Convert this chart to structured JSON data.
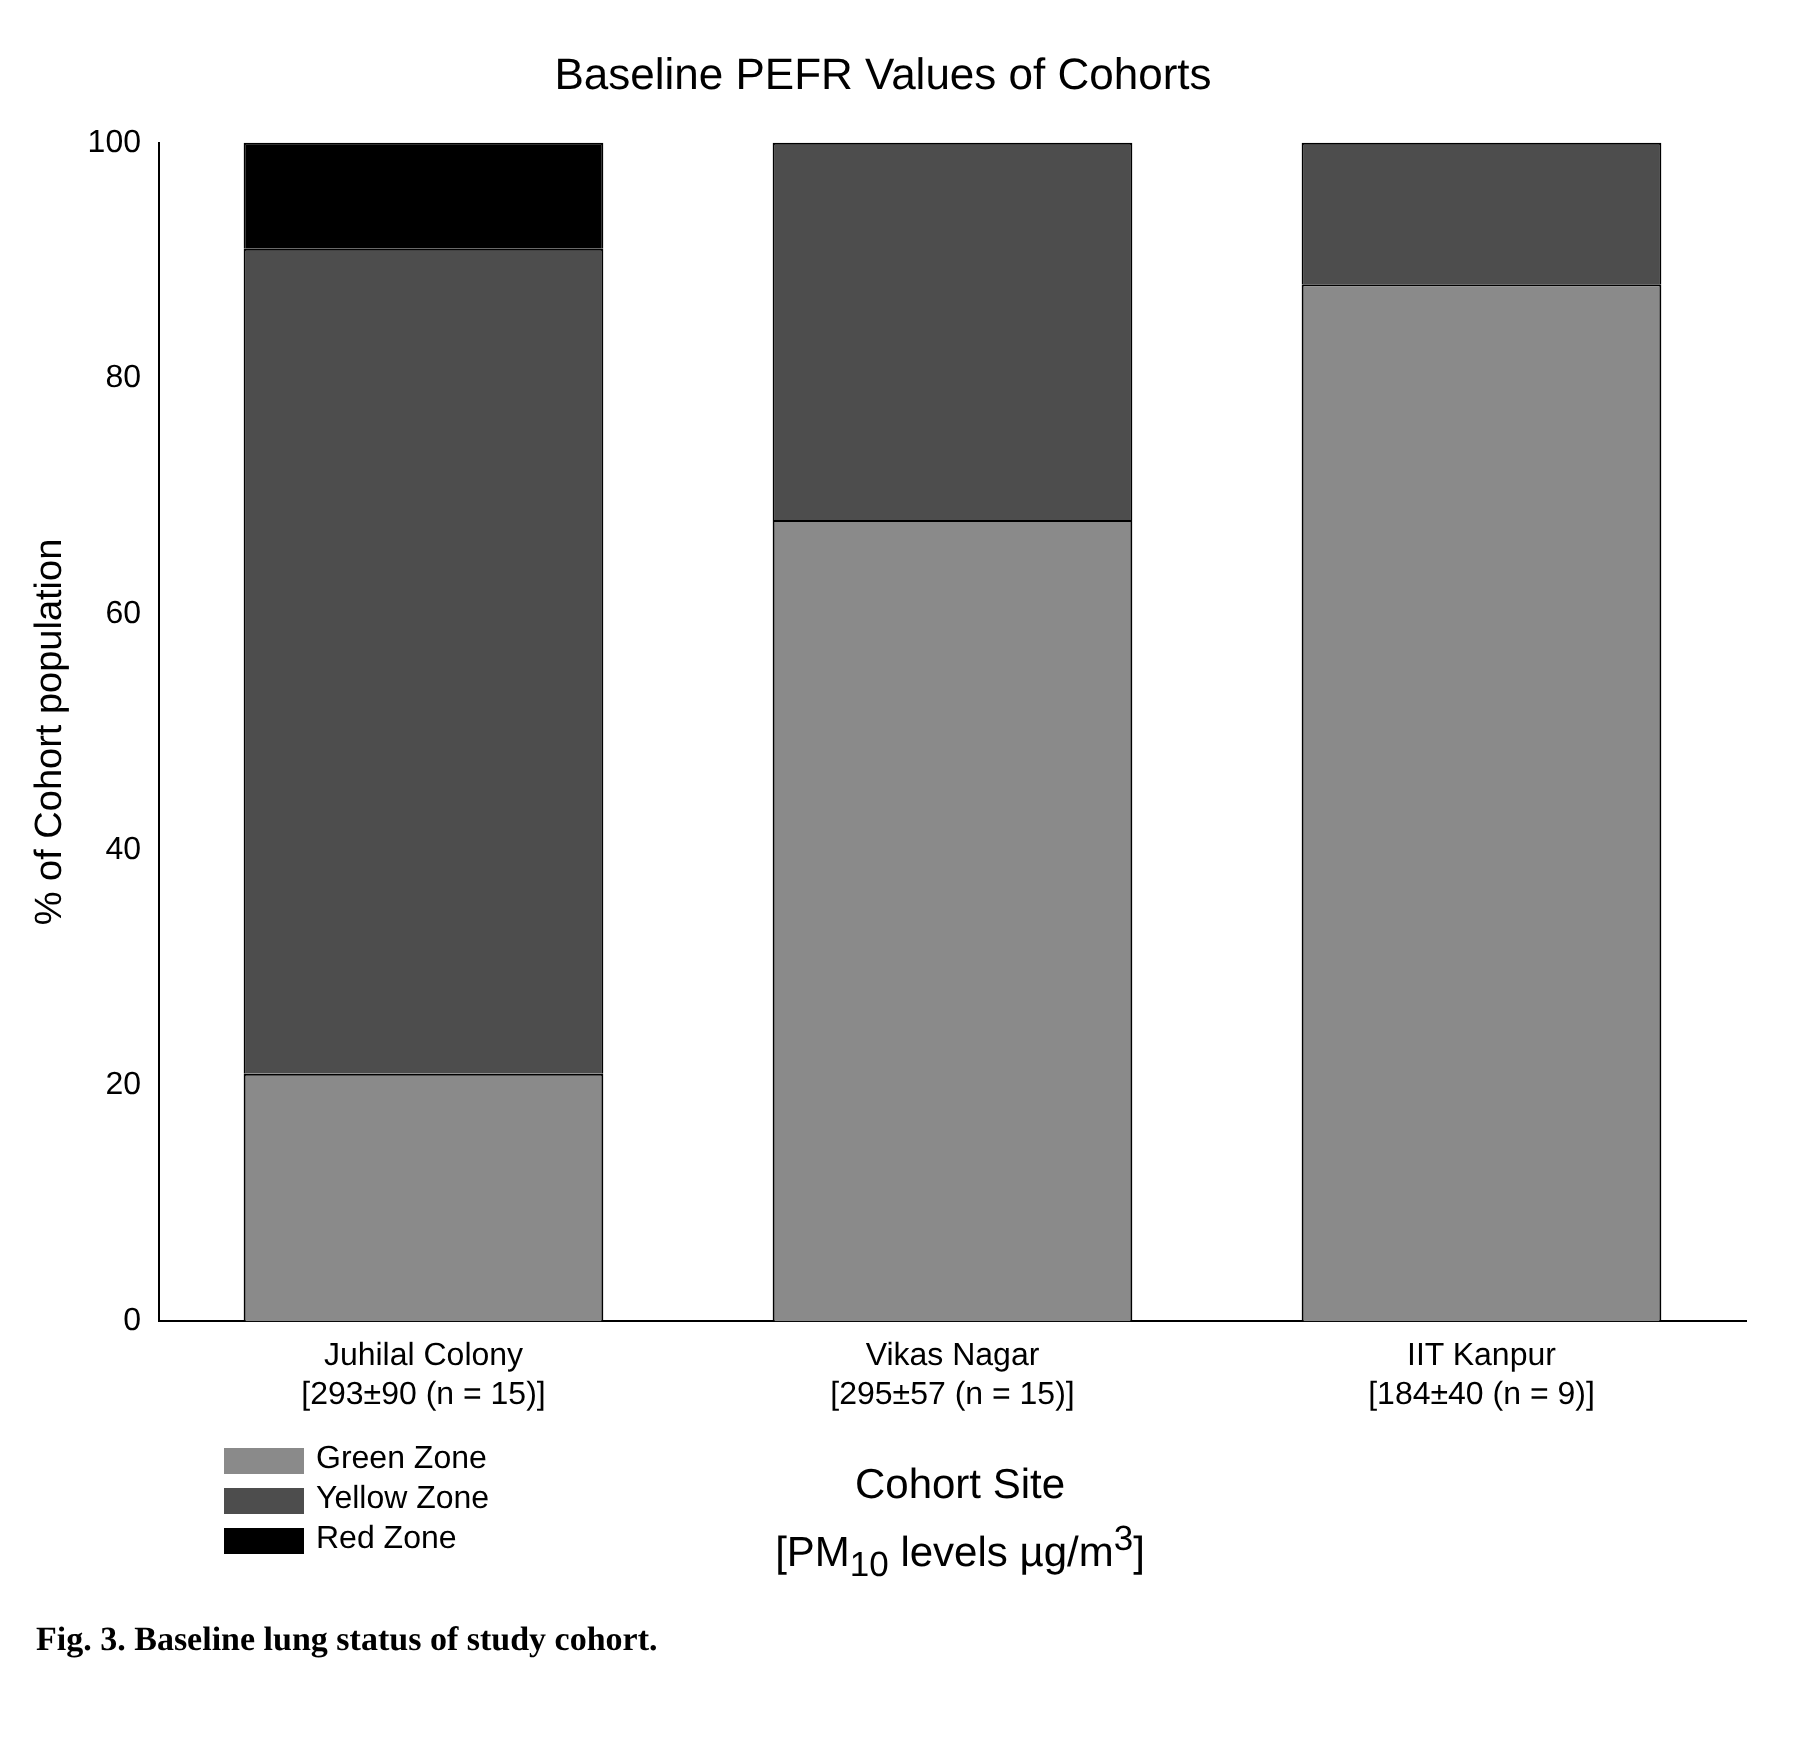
{
  "chart_data": {
    "type": "bar",
    "title": "Baseline PEFR Values of Cohorts",
    "ylabel": "% of Cohort population",
    "xlabel": "Cohort Site\n[PM$_{10}$ levels µg/m$^{3}$]",
    "categories": [
      "Juhilal Colony\n[293±90 (n = 15)]",
      "Vikas Nagar\n[295±57 (n = 15)]",
      "IIT Kanpur\n[184±40 (n = 9)]"
    ],
    "stacked": true,
    "series": [
      {
        "name": "Green Zone",
        "color": "#8a8a8a",
        "values": [
          21,
          68,
          88
        ]
      },
      {
        "name": "Yellow Zone",
        "color": "#4d4d4d",
        "values": [
          70,
          32,
          12
        ]
      },
      {
        "name": "Red Zone",
        "color": "#000000",
        "values": [
          9,
          0,
          0
        ]
      }
    ],
    "ylim": [
      0,
      100
    ],
    "yticks": [
      0,
      20,
      40,
      60,
      80,
      100
    ],
    "grid": false,
    "legend": "bottom left",
    "annotations": [
      "Fig. 3. Baseline lung status of study cohort."
    ]
  }
}
